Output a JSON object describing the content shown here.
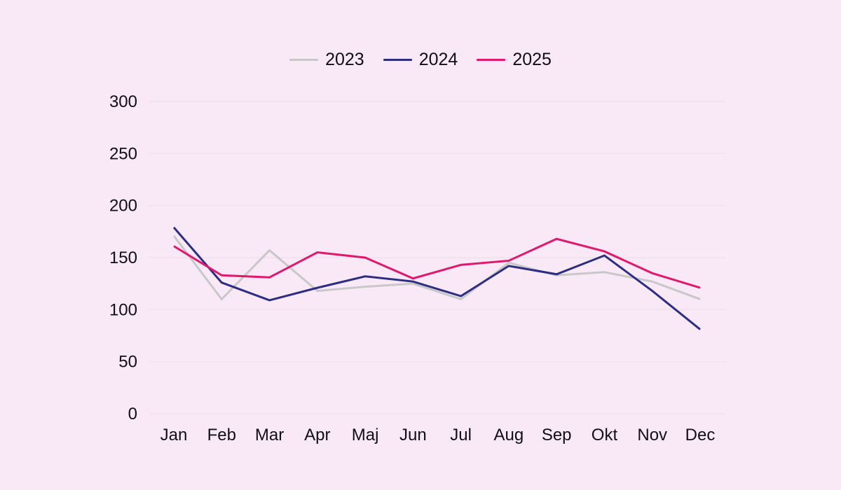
{
  "chart_data": {
    "type": "line",
    "title": "",
    "xlabel": "",
    "ylabel": "",
    "categories": [
      "Jan",
      "Feb",
      "Mar",
      "Apr",
      "Maj",
      "Jun",
      "Jul",
      "Aug",
      "Sep",
      "Okt",
      "Nov",
      "Dec"
    ],
    "series": [
      {
        "name": "2023",
        "color": "#c8c8c8",
        "values": [
          171,
          110,
          157,
          118,
          122,
          125,
          110,
          145,
          133,
          136,
          127,
          110
        ]
      },
      {
        "name": "2024",
        "color": "#2b2e83",
        "values": [
          179,
          126,
          109,
          121,
          132,
          127,
          113,
          142,
          134,
          152,
          118,
          81
        ]
      },
      {
        "name": "2025",
        "color": "#e0196d",
        "values": [
          161,
          133,
          131,
          155,
          150,
          130,
          143,
          147,
          168,
          156,
          135,
          121
        ]
      }
    ],
    "ylim": [
      0,
      300
    ],
    "yticks": [
      0,
      50,
      100,
      150,
      200,
      250,
      300
    ],
    "grid": true,
    "legend_position": "top-center",
    "background_color": "#f9e9f7",
    "gridline_color": "#eee0ec",
    "tick_color": "#101014"
  }
}
